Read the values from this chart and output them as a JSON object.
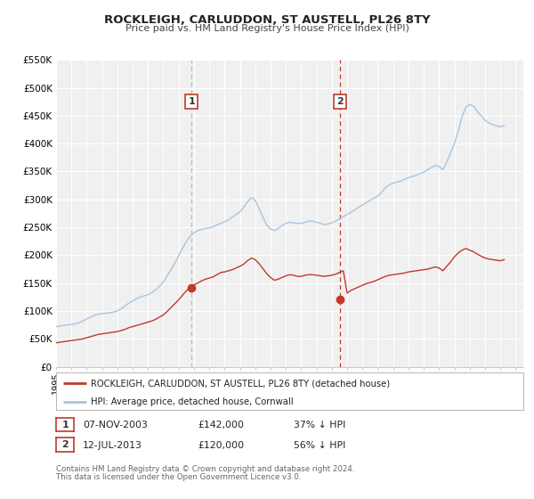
{
  "title": "ROCKLEIGH, CARLUDDON, ST AUSTELL, PL26 8TY",
  "subtitle": "Price paid vs. HM Land Registry's House Price Index (HPI)",
  "ylim": [
    0,
    550000
  ],
  "yticks": [
    0,
    50000,
    100000,
    150000,
    200000,
    250000,
    300000,
    350000,
    400000,
    450000,
    500000,
    550000
  ],
  "ytick_labels": [
    "£0",
    "£50K",
    "£100K",
    "£150K",
    "£200K",
    "£250K",
    "£300K",
    "£350K",
    "£400K",
    "£450K",
    "£500K",
    "£550K"
  ],
  "xlim_start": 1995.0,
  "xlim_end": 2025.5,
  "hpi_color": "#a8c4e0",
  "price_color": "#c0392b",
  "background_color": "#f0f0f0",
  "grid_color": "#ffffff",
  "legend_label_red": "ROCKLEIGH, CARLUDDON, ST AUSTELL, PL26 8TY (detached house)",
  "legend_label_blue": "HPI: Average price, detached house, Cornwall",
  "sale1_x": 2003.854,
  "sale1_y": 142000,
  "sale2_x": 2013.538,
  "sale2_y": 120000,
  "sale1_date": "07-NOV-2003",
  "sale1_price": "£142,000",
  "sale1_hpi": "37% ↓ HPI",
  "sale2_date": "12-JUL-2013",
  "sale2_price": "£120,000",
  "sale2_hpi": "56% ↓ HPI",
  "footer1": "Contains HM Land Registry data © Crown copyright and database right 2024.",
  "footer2": "This data is licensed under the Open Government Licence v3.0.",
  "hpi_data_x": [
    1995.0,
    1995.25,
    1995.5,
    1995.75,
    1996.0,
    1996.25,
    1996.5,
    1996.75,
    1997.0,
    1997.25,
    1997.5,
    1997.75,
    1998.0,
    1998.25,
    1998.5,
    1998.75,
    1999.0,
    1999.25,
    1999.5,
    1999.75,
    2000.0,
    2000.25,
    2000.5,
    2000.75,
    2001.0,
    2001.25,
    2001.5,
    2001.75,
    2002.0,
    2002.25,
    2002.5,
    2002.75,
    2003.0,
    2003.25,
    2003.5,
    2003.75,
    2004.0,
    2004.25,
    2004.5,
    2004.75,
    2005.0,
    2005.25,
    2005.5,
    2005.75,
    2006.0,
    2006.25,
    2006.5,
    2006.75,
    2007.0,
    2007.25,
    2007.5,
    2007.75,
    2008.0,
    2008.25,
    2008.5,
    2008.75,
    2009.0,
    2009.25,
    2009.5,
    2009.75,
    2010.0,
    2010.25,
    2010.5,
    2010.75,
    2011.0,
    2011.25,
    2011.5,
    2011.75,
    2012.0,
    2012.25,
    2012.5,
    2012.75,
    2013.0,
    2013.25,
    2013.5,
    2013.75,
    2014.0,
    2014.25,
    2014.5,
    2014.75,
    2015.0,
    2015.25,
    2015.5,
    2015.75,
    2016.0,
    2016.25,
    2016.5,
    2016.75,
    2017.0,
    2017.25,
    2017.5,
    2017.75,
    2018.0,
    2018.25,
    2018.5,
    2018.75,
    2019.0,
    2019.25,
    2019.5,
    2019.75,
    2020.0,
    2020.25,
    2020.5,
    2020.75,
    2021.0,
    2021.25,
    2021.5,
    2021.75,
    2022.0,
    2022.25,
    2022.5,
    2022.75,
    2023.0,
    2023.25,
    2023.5,
    2023.75,
    2024.0,
    2024.25
  ],
  "hpi_data_y": [
    72000,
    73000,
    74000,
    75000,
    76000,
    77000,
    79000,
    82000,
    86000,
    89000,
    92000,
    94000,
    95000,
    96000,
    97000,
    98000,
    100000,
    104000,
    109000,
    114000,
    118000,
    122000,
    125000,
    127000,
    129000,
    133000,
    138000,
    144000,
    152000,
    163000,
    174000,
    186000,
    199000,
    212000,
    224000,
    234000,
    240000,
    244000,
    246000,
    248000,
    249000,
    251000,
    254000,
    257000,
    260000,
    263000,
    268000,
    273000,
    278000,
    286000,
    296000,
    303000,
    298000,
    284000,
    268000,
    254000,
    247000,
    244000,
    248000,
    253000,
    257000,
    259000,
    258000,
    257000,
    257000,
    259000,
    261000,
    261000,
    259000,
    257000,
    255000,
    256000,
    258000,
    261000,
    265000,
    269000,
    273000,
    277000,
    281000,
    286000,
    290000,
    294000,
    298000,
    302000,
    306000,
    313000,
    321000,
    326000,
    329000,
    331000,
    333000,
    336000,
    339000,
    341000,
    343000,
    346000,
    349000,
    353000,
    357000,
    361000,
    359000,
    353000,
    367000,
    383000,
    400000,
    422000,
    448000,
    465000,
    470000,
    467000,
    457000,
    450000,
    442000,
    437000,
    434000,
    432000,
    430000,
    432000
  ],
  "price_data_x": [
    1995.0,
    1995.25,
    1995.5,
    1995.75,
    1996.0,
    1996.25,
    1996.5,
    1996.75,
    1997.0,
    1997.25,
    1997.5,
    1997.75,
    1998.0,
    1998.25,
    1998.5,
    1998.75,
    1999.0,
    1999.25,
    1999.5,
    1999.75,
    2000.0,
    2000.25,
    2000.5,
    2000.75,
    2001.0,
    2001.25,
    2001.5,
    2001.75,
    2002.0,
    2002.25,
    2002.5,
    2002.75,
    2003.0,
    2003.25,
    2003.5,
    2003.75,
    2004.0,
    2004.25,
    2004.5,
    2004.75,
    2005.0,
    2005.25,
    2005.5,
    2005.75,
    2006.0,
    2006.25,
    2006.5,
    2006.75,
    2007.0,
    2007.25,
    2007.5,
    2007.75,
    2008.0,
    2008.25,
    2008.5,
    2008.75,
    2009.0,
    2009.25,
    2009.5,
    2009.75,
    2010.0,
    2010.25,
    2010.5,
    2010.75,
    2011.0,
    2011.25,
    2011.5,
    2011.75,
    2012.0,
    2012.25,
    2012.5,
    2012.75,
    2013.0,
    2013.25,
    2013.5,
    2013.75,
    2014.0,
    2014.25,
    2014.5,
    2014.75,
    2015.0,
    2015.25,
    2015.5,
    2015.75,
    2016.0,
    2016.25,
    2016.5,
    2016.75,
    2017.0,
    2017.25,
    2017.5,
    2017.75,
    2018.0,
    2018.25,
    2018.5,
    2018.75,
    2019.0,
    2019.25,
    2019.5,
    2019.75,
    2020.0,
    2020.25,
    2020.5,
    2020.75,
    2021.0,
    2021.25,
    2021.5,
    2021.75,
    2022.0,
    2022.25,
    2022.5,
    2022.75,
    2023.0,
    2023.25,
    2023.5,
    2023.75,
    2024.0,
    2024.25
  ],
  "price_data_y": [
    43000,
    44000,
    45000,
    46000,
    47000,
    48000,
    49000,
    50000,
    52000,
    54000,
    56000,
    58000,
    59000,
    60000,
    61000,
    62000,
    63000,
    65000,
    67000,
    70000,
    72000,
    74000,
    76000,
    78000,
    80000,
    82000,
    85000,
    89000,
    93000,
    99000,
    106000,
    113000,
    120000,
    128000,
    136000,
    142000,
    147000,
    150000,
    154000,
    157000,
    159000,
    161000,
    165000,
    169000,
    170000,
    172000,
    174000,
    177000,
    180000,
    184000,
    190000,
    195000,
    192000,
    185000,
    176000,
    167000,
    160000,
    155000,
    157000,
    160000,
    163000,
    165000,
    164000,
    162000,
    162000,
    164000,
    165000,
    165000,
    164000,
    163000,
    162000,
    163000,
    164000,
    166000,
    169000,
    172000,
    132000,
    137000,
    140000,
    143000,
    146000,
    149000,
    151000,
    153000,
    156000,
    159000,
    162000,
    164000,
    165000,
    166000,
    167000,
    168000,
    170000,
    171000,
    172000,
    173000,
    174000,
    175000,
    177000,
    179000,
    177000,
    172000,
    180000,
    188000,
    197000,
    204000,
    209000,
    212000,
    209000,
    206000,
    202000,
    198000,
    195000,
    193000,
    192000,
    191000,
    190000,
    192000
  ]
}
